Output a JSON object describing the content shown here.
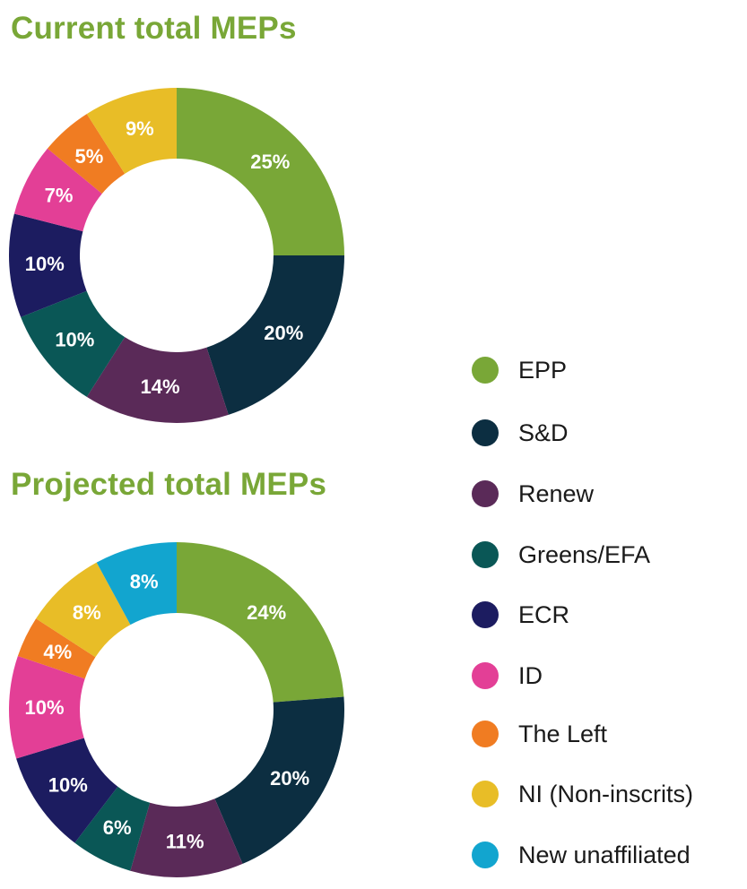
{
  "chart_data": [
    {
      "type": "pie",
      "title": "Current total MEPs",
      "categories": [
        "EPP",
        "S&D",
        "Renew",
        "Greens/EFA",
        "ECR",
        "ID",
        "The Left",
        "NI (Non-inscrits)"
      ],
      "values": [
        25,
        20,
        14,
        10,
        10,
        7,
        5,
        9
      ],
      "labels": [
        "25%",
        "20%",
        "14%",
        "10%",
        "10%",
        "7%",
        "5%",
        "9%"
      ],
      "colors": [
        "#79a737",
        "#0c2e41",
        "#5a2a58",
        "#0a5756",
        "#1c1c60",
        "#e33f96",
        "#f07c22",
        "#e8bd27"
      ]
    },
    {
      "type": "pie",
      "title": "Projected total MEPs",
      "categories": [
        "EPP",
        "S&D",
        "Renew",
        "Greens/EFA",
        "ECR",
        "ID",
        "The Left",
        "NI (Non-inscrits)",
        "New unaffiliated"
      ],
      "values": [
        24,
        20,
        11,
        6,
        10,
        10,
        4,
        8,
        8
      ],
      "labels": [
        "24%",
        "20%",
        "11%",
        "6%",
        "10%",
        "10%",
        "4%",
        "8%",
        "8%"
      ],
      "colors": [
        "#79a737",
        "#0c2e41",
        "#5a2a58",
        "#0a5756",
        "#1c1c60",
        "#e33f96",
        "#f07c22",
        "#e8bd27",
        "#12a5cf"
      ]
    }
  ],
  "legend": [
    {
      "label": "EPP",
      "color": "#79a737"
    },
    {
      "label": "S&D",
      "color": "#0c2e41"
    },
    {
      "label": "Renew",
      "color": "#5a2a58"
    },
    {
      "label": "Greens/EFA",
      "color": "#0a5756"
    },
    {
      "label": "ECR",
      "color": "#1c1c60"
    },
    {
      "label": "ID",
      "color": "#e33f96"
    },
    {
      "label": "The Left",
      "color": "#f07c22"
    },
    {
      "label": "NI (Non-inscrits)",
      "color": "#e8bd27"
    },
    {
      "label": "New unaffiliated",
      "color": "#12a5cf"
    }
  ]
}
